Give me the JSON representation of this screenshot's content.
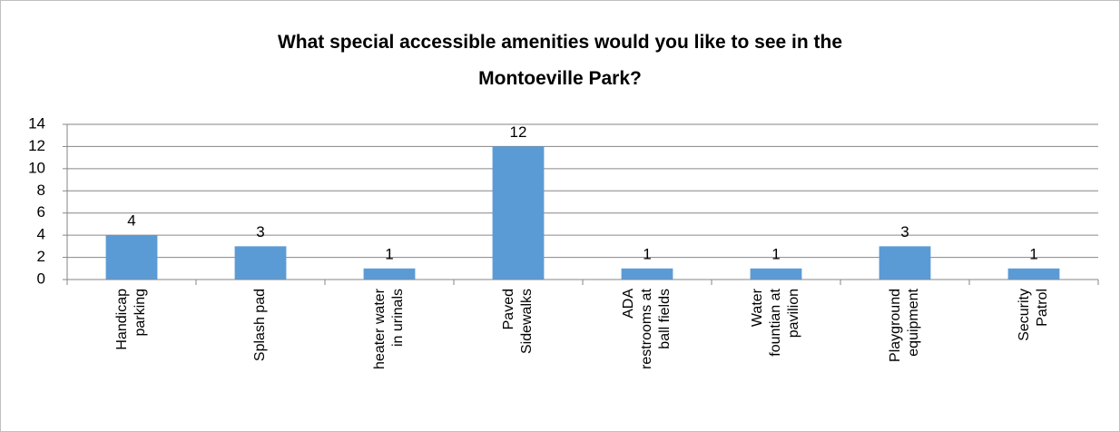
{
  "chart_data": {
    "type": "bar",
    "title": "What special accessible amenities would you like to see in the\nMontoeville Park?",
    "categories": [
      "Handicap\nparking",
      "Splash pad",
      "heater water\nin urinals",
      "Paved\nSidewalks",
      "ADA\nrestrooms at\nball fields",
      "Water\nfountian at\npavilion",
      "Playground\nequipment",
      "Security\nPatrol"
    ],
    "values": [
      4,
      3,
      1,
      12,
      1,
      1,
      3,
      1
    ],
    "color": "#5b9bd5",
    "ylim": [
      0,
      14
    ],
    "yticks": [
      0,
      2,
      4,
      6,
      8,
      10,
      12,
      14
    ],
    "grid": true
  }
}
